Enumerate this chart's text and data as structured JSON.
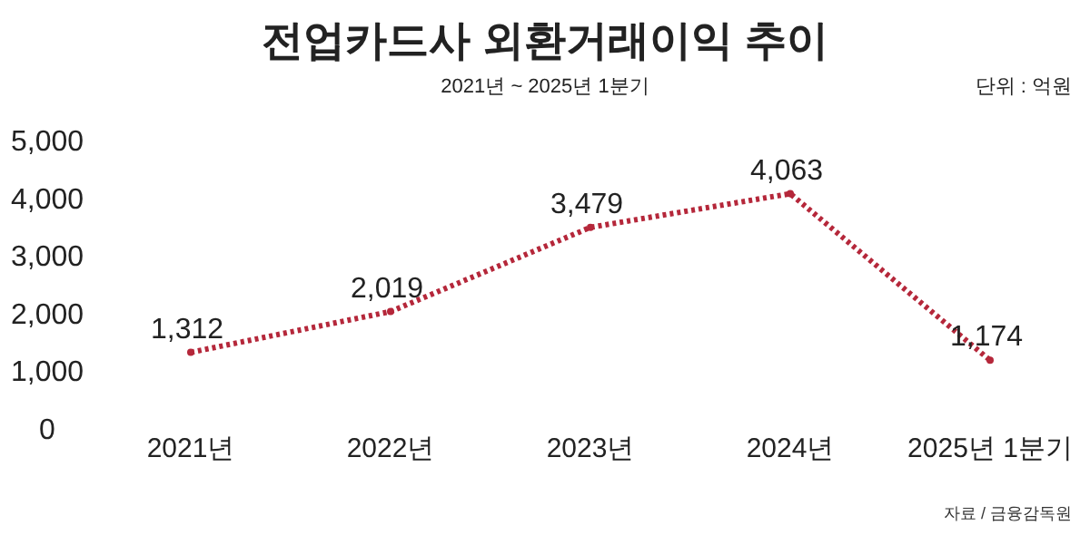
{
  "chart_data": {
    "type": "line",
    "title": "전업카드사 외환거래이익 추이",
    "subtitle": "2021년 ~ 2025년 1분기",
    "annotations": [
      "단위 : 억원",
      "자료 / 금융감독원"
    ],
    "categories": [
      "2021년",
      "2022년",
      "2023년",
      "2024년",
      "2025년 1분기"
    ],
    "series": [
      {
        "color": "#b5273a",
        "values": [
          1312,
          2019,
          3479,
          4063,
          1174
        ],
        "value_labels": [
          "1,312",
          "2,019",
          "3,479",
          "4,063",
          "1,174"
        ]
      }
    ],
    "ylim": [
      0,
      5000
    ],
    "yticks": [
      0,
      {
        "value": 1000,
        "label": "1,000"
      },
      {
        "value": 2000,
        "label": "2,000"
      },
      {
        "value": 3000,
        "label": "3,000"
      },
      {
        "value": 4000,
        "label": "4,000"
      },
      {
        "value": 5000,
        "label": "5,000"
      }
    ],
    "grid": false,
    "marker": "circle",
    "line_style": "dotted"
  }
}
